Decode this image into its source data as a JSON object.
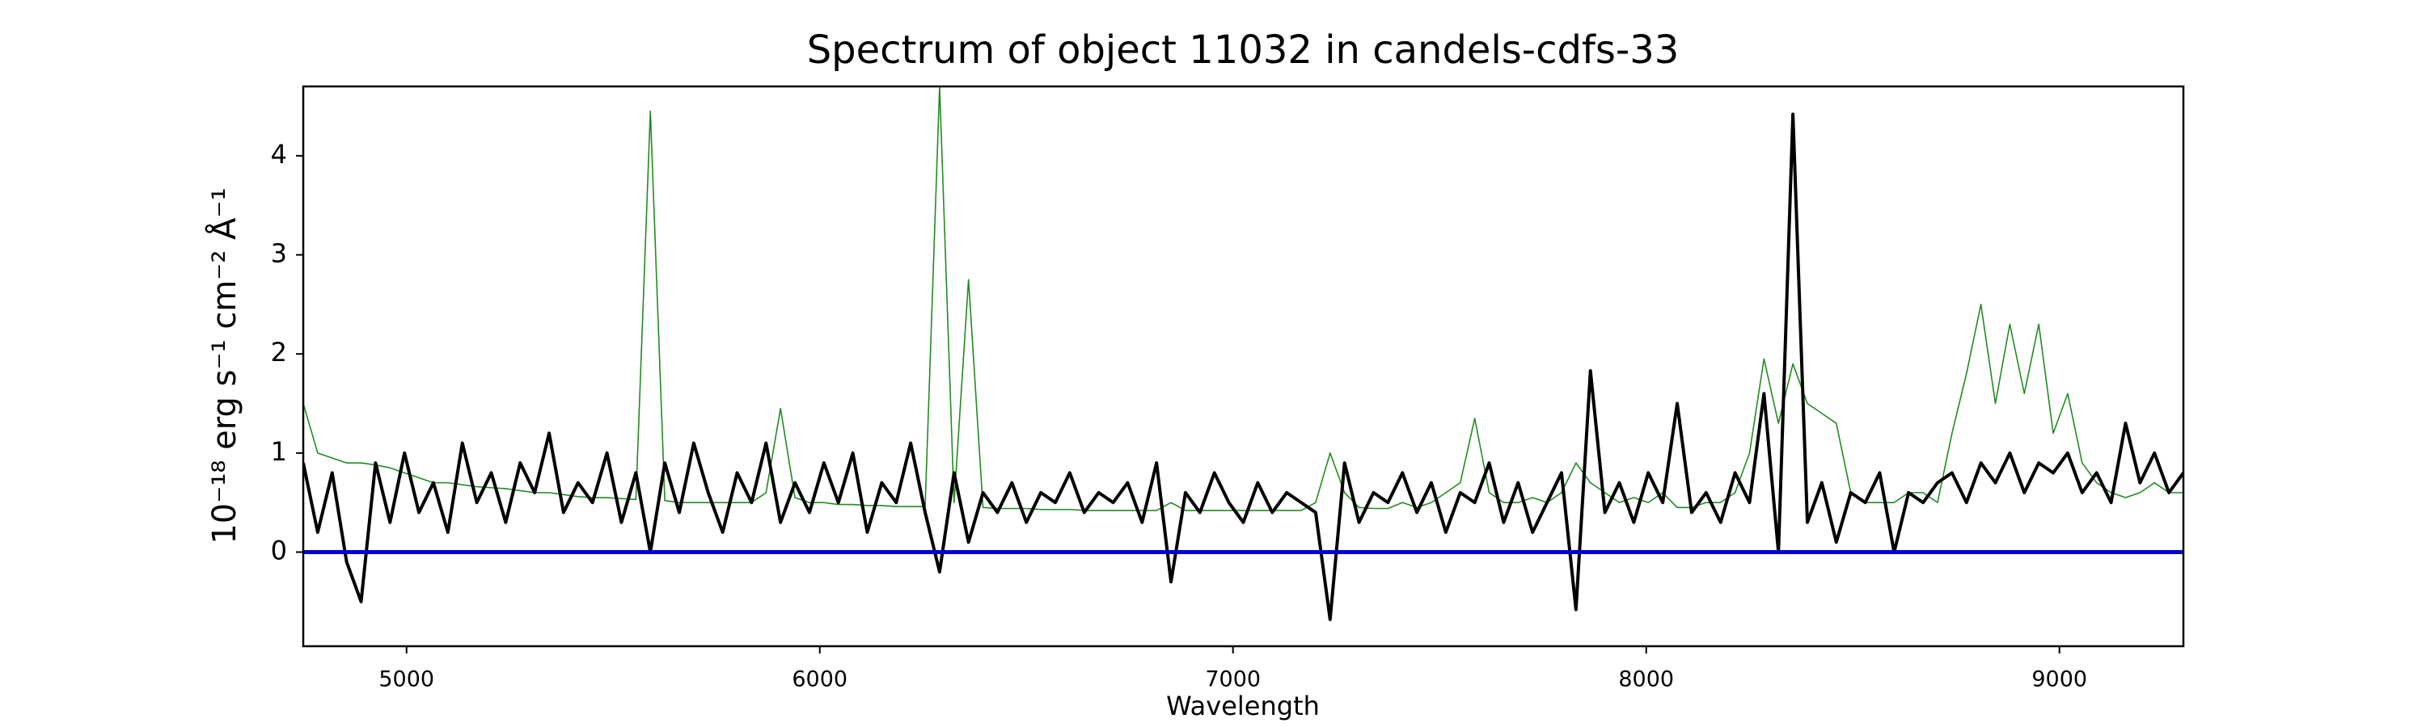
{
  "chart_data": {
    "type": "line",
    "title": "Spectrum of object 11032 in candels-cdfs-33",
    "xlabel": "Wavelength",
    "ylabel": "10⁻¹⁸ erg s⁻¹ cm⁻² Å⁻¹",
    "xlim": [
      4750,
      9300
    ],
    "ylim": [
      -0.95,
      4.7
    ],
    "xticks": [
      5000,
      6000,
      7000,
      8000,
      9000
    ],
    "yticks": [
      0,
      1,
      2,
      3,
      4
    ],
    "hlines": [
      {
        "value": 0,
        "color": "#0000cc"
      }
    ],
    "x": [
      4750,
      4785,
      4820,
      4855,
      4890,
      4925,
      4960,
      4995,
      5030,
      5065,
      5100,
      5135,
      5170,
      5205,
      5240,
      5275,
      5310,
      5345,
      5380,
      5415,
      5450,
      5485,
      5520,
      5555,
      5590,
      5625,
      5660,
      5695,
      5730,
      5765,
      5800,
      5835,
      5870,
      5905,
      5940,
      5975,
      6010,
      6045,
      6080,
      6115,
      6150,
      6185,
      6220,
      6255,
      6290,
      6325,
      6360,
      6395,
      6430,
      6465,
      6500,
      6535,
      6570,
      6605,
      6640,
      6675,
      6710,
      6745,
      6780,
      6815,
      6850,
      6885,
      6920,
      6955,
      6990,
      7025,
      7060,
      7095,
      7130,
      7165,
      7200,
      7235,
      7270,
      7305,
      7340,
      7375,
      7410,
      7445,
      7480,
      7515,
      7550,
      7585,
      7620,
      7655,
      7690,
      7725,
      7760,
      7795,
      7830,
      7865,
      7900,
      7935,
      7970,
      8005,
      8040,
      8075,
      8110,
      8145,
      8180,
      8215,
      8250,
      8285,
      8320,
      8355,
      8390,
      8425,
      8460,
      8495,
      8530,
      8565,
      8600,
      8635,
      8670,
      8705,
      8740,
      8775,
      8810,
      8845,
      8880,
      8915,
      8950,
      8985,
      9020,
      9055,
      9090,
      9125,
      9160,
      9195,
      9230,
      9265,
      9300
    ],
    "series": [
      {
        "color": "#228b22",
        "width": 1.6,
        "values": [
          1.5,
          1.0,
          0.95,
          0.9,
          0.9,
          0.88,
          0.85,
          0.8,
          0.75,
          0.7,
          0.7,
          0.68,
          0.66,
          0.65,
          0.64,
          0.62,
          0.6,
          0.6,
          0.58,
          0.56,
          0.55,
          0.55,
          0.54,
          0.53,
          4.45,
          0.52,
          0.5,
          0.5,
          0.5,
          0.5,
          0.5,
          0.5,
          0.6,
          1.45,
          0.55,
          0.5,
          0.5,
          0.48,
          0.48,
          0.47,
          0.47,
          0.46,
          0.46,
          0.46,
          4.7,
          0.5,
          2.75,
          0.45,
          0.44,
          0.44,
          0.44,
          0.43,
          0.43,
          0.43,
          0.42,
          0.42,
          0.42,
          0.42,
          0.42,
          0.42,
          0.5,
          0.42,
          0.42,
          0.42,
          0.42,
          0.42,
          0.42,
          0.42,
          0.42,
          0.42,
          0.5,
          1.0,
          0.6,
          0.45,
          0.44,
          0.44,
          0.5,
          0.45,
          0.5,
          0.6,
          0.7,
          1.35,
          0.6,
          0.5,
          0.5,
          0.55,
          0.5,
          0.6,
          0.9,
          0.7,
          0.6,
          0.5,
          0.55,
          0.5,
          0.6,
          0.45,
          0.45,
          0.5,
          0.5,
          0.6,
          1.0,
          1.95,
          1.3,
          1.9,
          1.5,
          1.4,
          1.3,
          0.6,
          0.5,
          0.5,
          0.5,
          0.6,
          0.6,
          0.5,
          1.2,
          1.8,
          2.5,
          1.5,
          2.3,
          1.6,
          2.3,
          1.2,
          1.6,
          0.9,
          0.7,
          0.6,
          0.55,
          0.6,
          0.7,
          0.6,
          0.6
        ]
      },
      {
        "color": "#000000",
        "width": 4,
        "values": [
          0.9,
          0.2,
          0.8,
          -0.1,
          -0.5,
          0.9,
          0.3,
          1.0,
          0.4,
          0.7,
          0.2,
          1.1,
          0.5,
          0.8,
          0.3,
          0.9,
          0.6,
          1.2,
          0.4,
          0.7,
          0.5,
          1.0,
          0.3,
          0.8,
          0.0,
          0.9,
          0.4,
          1.1,
          0.6,
          0.2,
          0.8,
          0.5,
          1.1,
          0.3,
          0.7,
          0.4,
          0.9,
          0.5,
          1.0,
          0.2,
          0.7,
          0.5,
          1.1,
          0.4,
          -0.2,
          0.8,
          0.1,
          0.6,
          0.4,
          0.7,
          0.3,
          0.6,
          0.5,
          0.8,
          0.4,
          0.6,
          0.5,
          0.7,
          0.3,
          0.9,
          -0.3,
          0.6,
          0.4,
          0.8,
          0.5,
          0.3,
          0.7,
          0.4,
          0.6,
          0.5,
          0.4,
          -0.68,
          0.9,
          0.3,
          0.6,
          0.5,
          0.8,
          0.4,
          0.7,
          0.2,
          0.6,
          0.5,
          0.9,
          0.3,
          0.7,
          0.2,
          0.5,
          0.8,
          -0.58,
          1.83,
          0.4,
          0.7,
          0.3,
          0.8,
          0.5,
          1.5,
          0.4,
          0.6,
          0.3,
          0.8,
          0.5,
          1.6,
          0.0,
          4.42,
          0.3,
          0.7,
          0.1,
          0.6,
          0.5,
          0.8,
          0.0,
          0.6,
          0.5,
          0.7,
          0.8,
          0.5,
          0.9,
          0.7,
          1.0,
          0.6,
          0.9,
          0.8,
          1.0,
          0.6,
          0.8,
          0.5,
          1.3,
          0.7,
          1.0,
          0.6,
          0.8
        ]
      }
    ]
  }
}
